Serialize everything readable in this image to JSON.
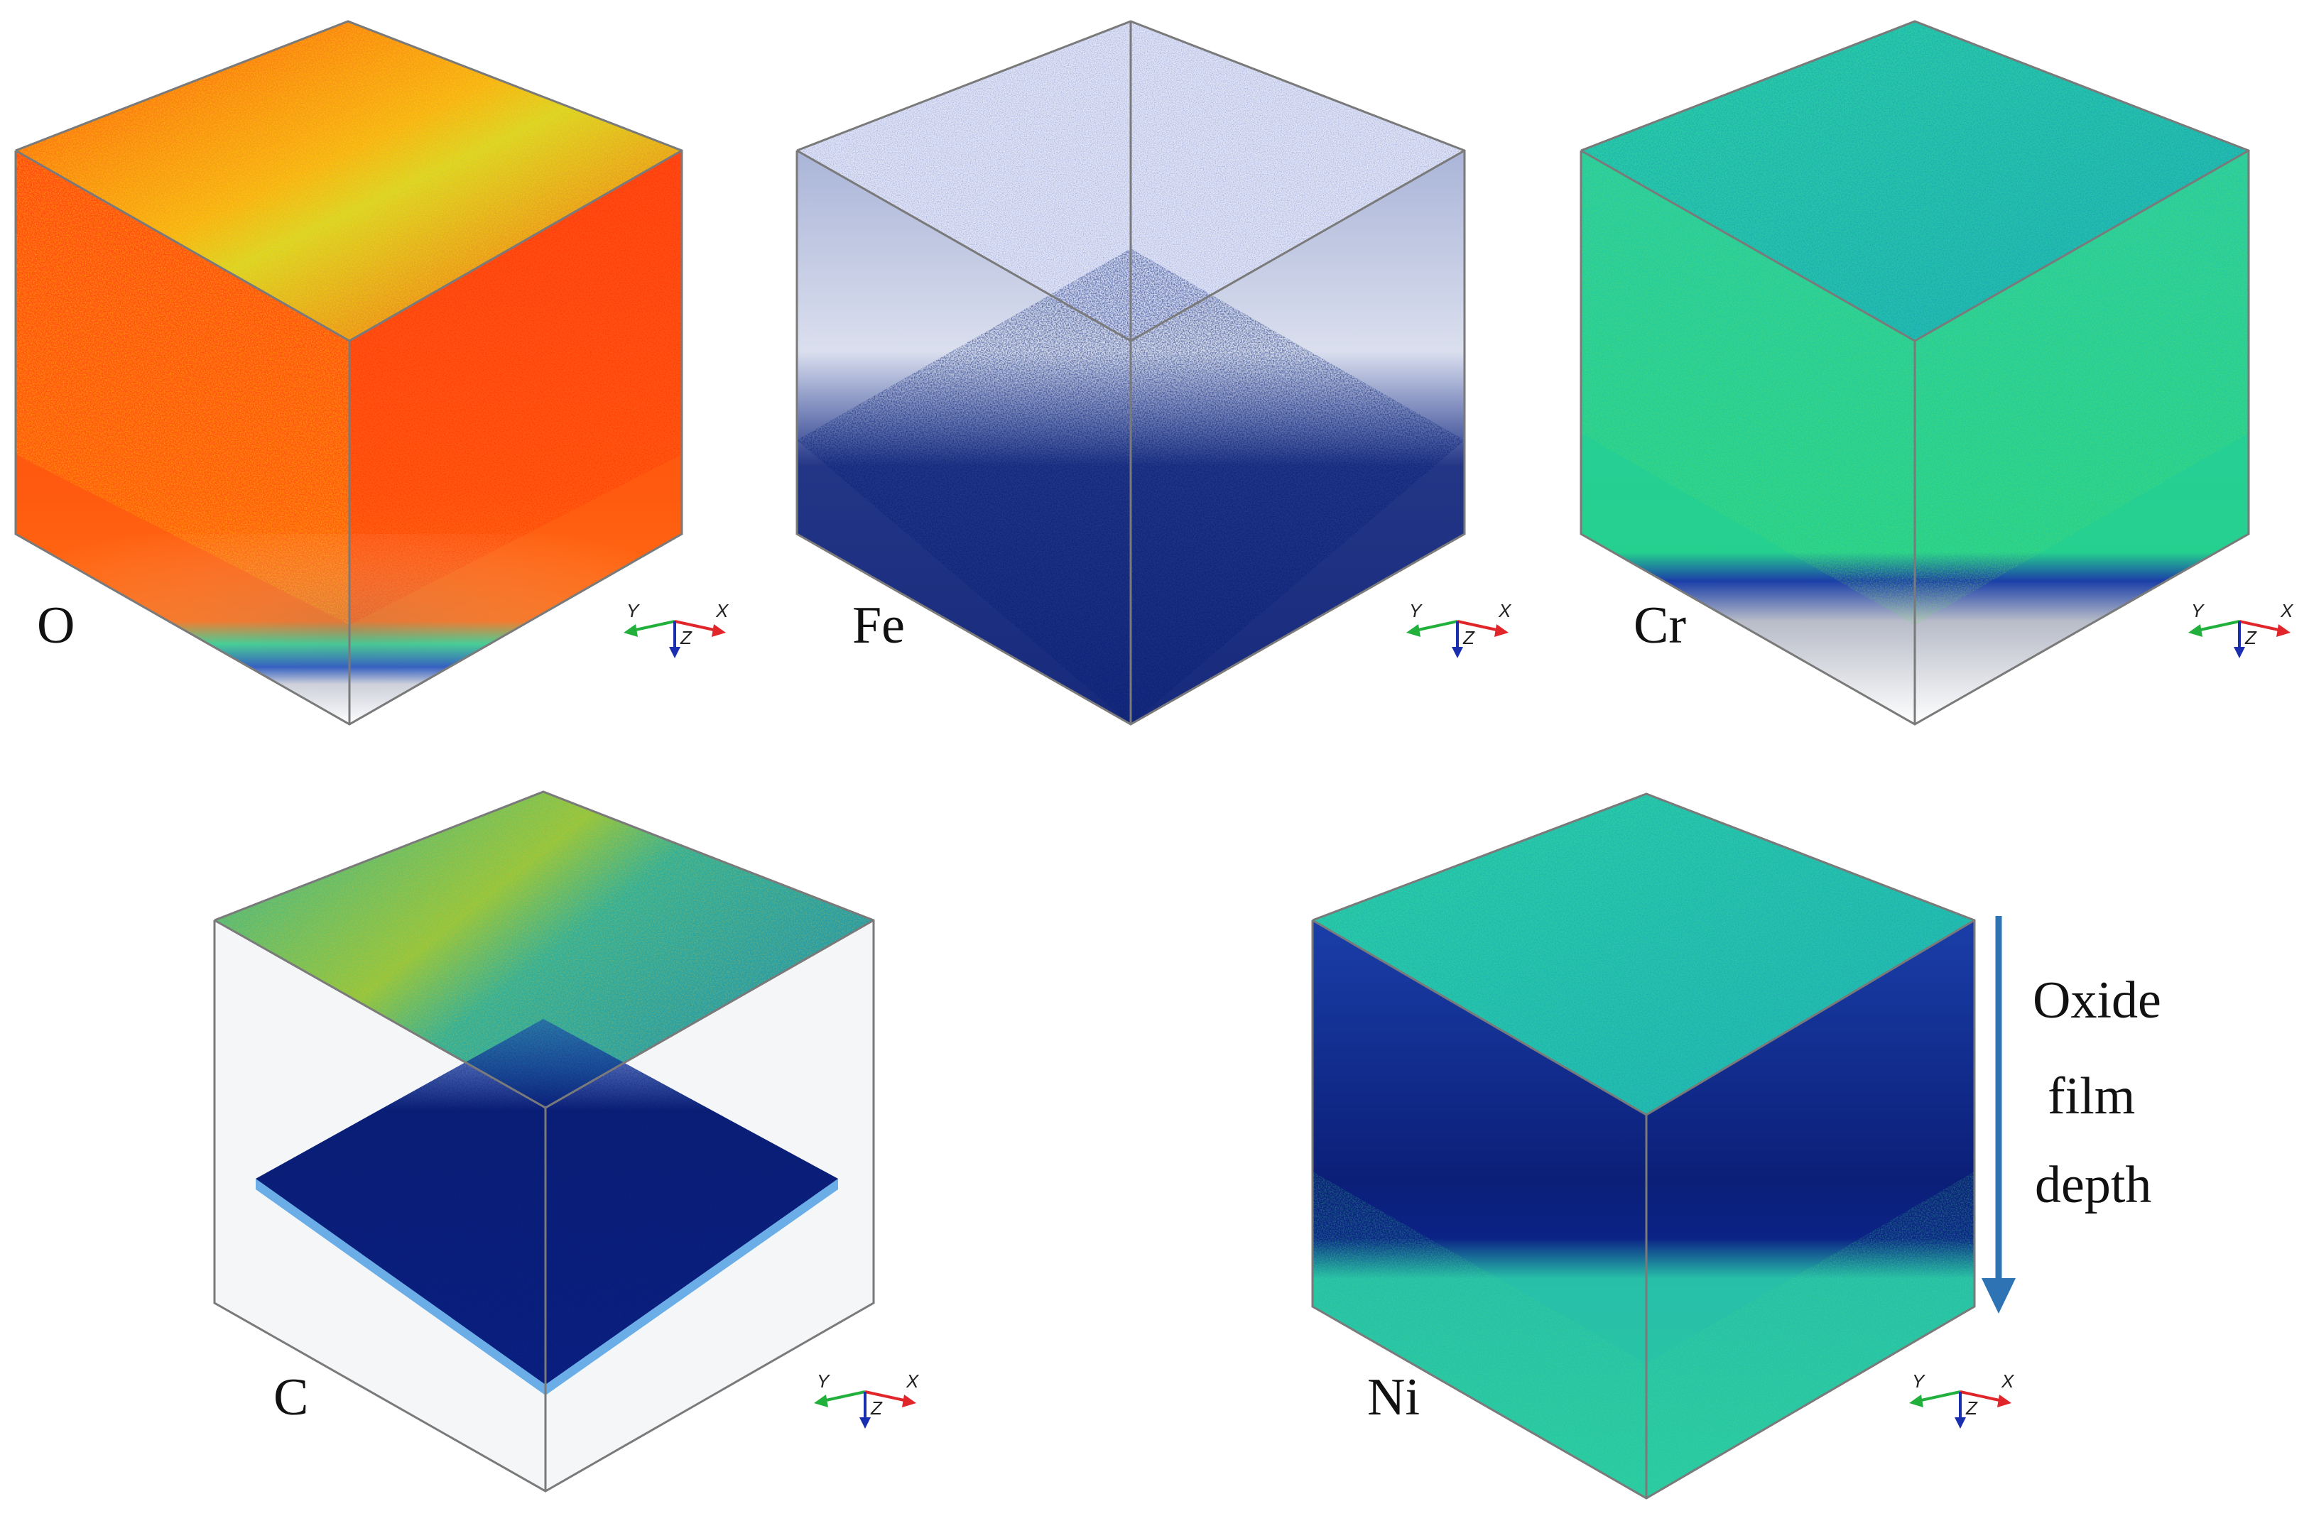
{
  "panels": [
    {
      "element": "O",
      "colormap": "heat",
      "fill": "full"
    },
    {
      "element": "Fe",
      "colormap": "blue",
      "fill": "bottom-half"
    },
    {
      "element": "Cr",
      "colormap": "green",
      "fill": "full"
    },
    {
      "element": "C",
      "colormap": "green",
      "fill": "top-slab-and-bottom"
    },
    {
      "element": "Ni",
      "colormap": "green",
      "fill": "layered"
    }
  ],
  "axis_triad": {
    "x": "X",
    "y": "Y",
    "z": "Z"
  },
  "annotation": {
    "line1": "Oxide",
    "line2": "film",
    "line3": "depth"
  },
  "colors": {
    "heat_low": "#ff3300",
    "heat_high": "#ffb000",
    "heat_band": "#2ad68c",
    "blue_dark": "#0b1f78",
    "blue_mid": "#1f55c8",
    "green_top": "#2fd0a0",
    "green_mid": "#1fbfa8",
    "arrow": "#2e74b5",
    "axis_x": "#e0262a",
    "axis_y": "#22b03c",
    "axis_z": "#1a2fb0"
  }
}
